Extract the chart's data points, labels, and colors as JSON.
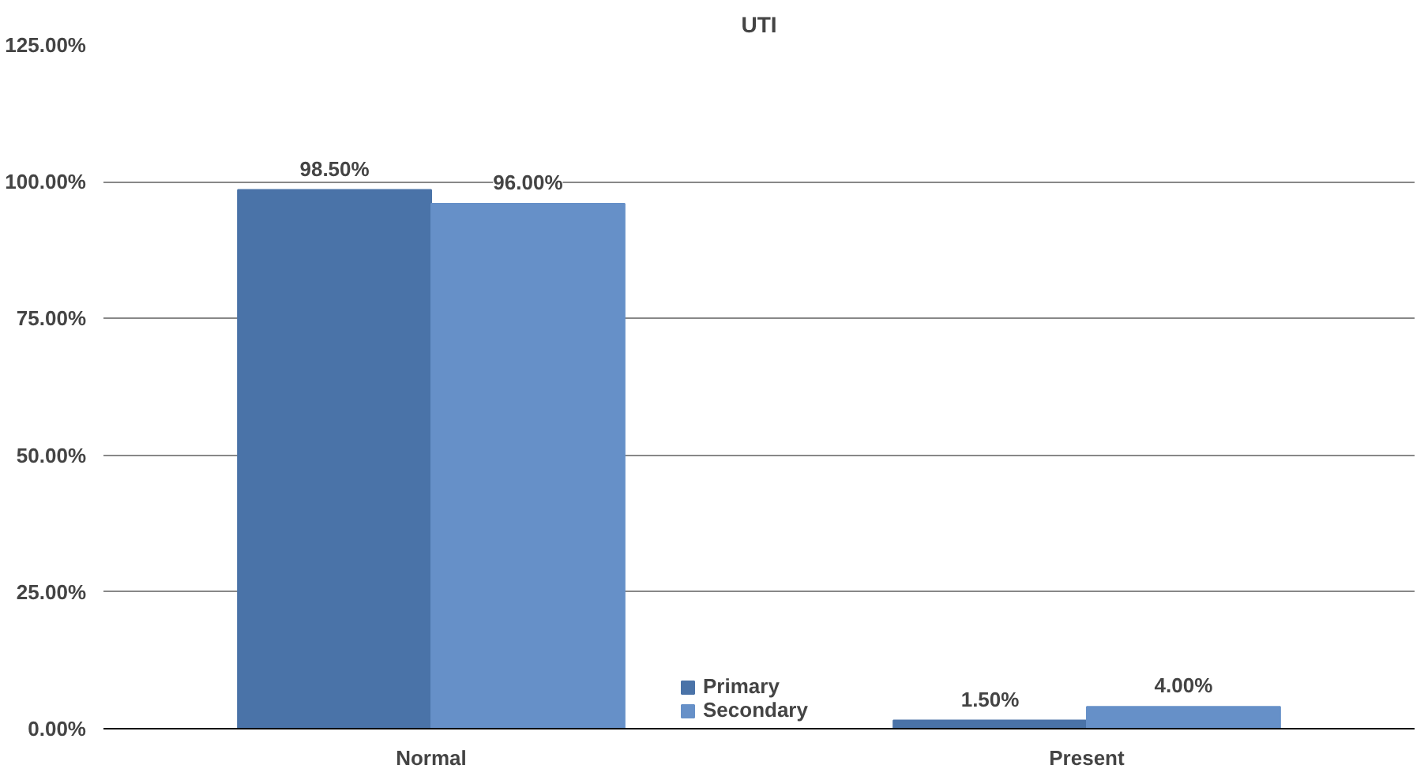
{
  "chart_data": {
    "type": "bar",
    "title": "UTI",
    "categories": [
      "Normal",
      "Present"
    ],
    "series": [
      {
        "name": "Primary",
        "color": "#4a73a8",
        "values": [
          98.5,
          1.5
        ],
        "value_labels": [
          "98.50%",
          "1.50%"
        ]
      },
      {
        "name": "Secondary",
        "color": "#6690c8",
        "values": [
          96.0,
          4.0
        ],
        "value_labels": [
          "96.00%",
          "4.00%"
        ]
      }
    ],
    "ylim": [
      0,
      125
    ],
    "yticks": [
      {
        "value": 0,
        "label": "0.00%"
      },
      {
        "value": 25,
        "label": "25.00%"
      },
      {
        "value": 50,
        "label": "50.00%"
      },
      {
        "value": 75,
        "label": "75.00%"
      },
      {
        "value": 100,
        "label": "100.00%"
      },
      {
        "value": 125,
        "label": "125.00%"
      }
    ],
    "grid": "y",
    "legend": "bottom"
  }
}
